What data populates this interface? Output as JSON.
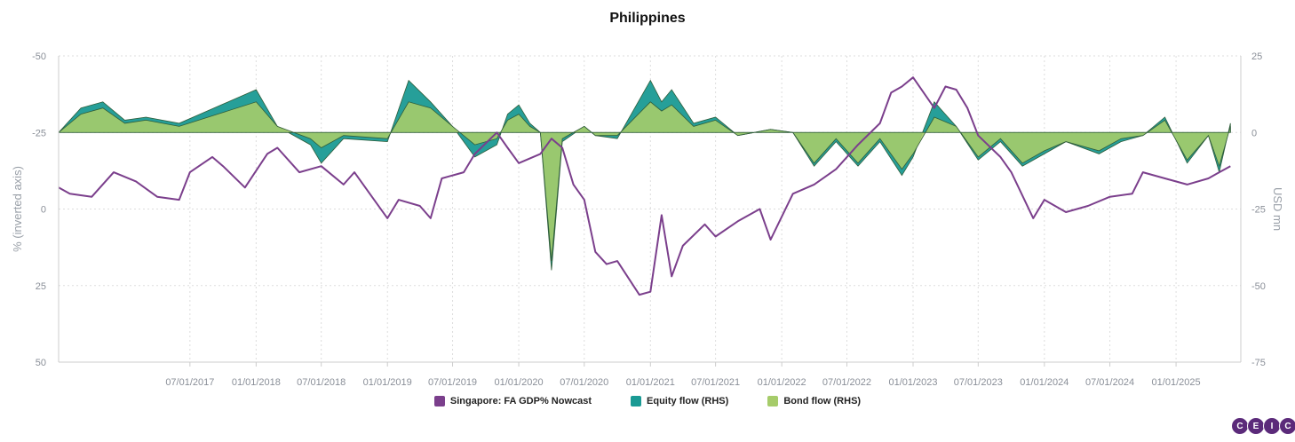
{
  "chart_data": {
    "type": "line",
    "title": "Philippines",
    "y_left": {
      "label": "% (inverted axis)",
      "ticks": [
        "-50",
        "-25",
        "0",
        "25",
        "50"
      ],
      "range": [
        -50,
        50
      ],
      "inverted": true
    },
    "y_right": {
      "label": "USD mn",
      "ticks": [
        "25",
        "0",
        "-25",
        "-50",
        "-75"
      ],
      "range": [
        -75,
        25
      ]
    },
    "x": {
      "start": "2016-07-01",
      "end": "2025-06-30",
      "ticks": [
        "07/01/2017",
        "01/01/2018",
        "07/01/2018",
        "01/01/2019",
        "07/01/2019",
        "01/01/2020",
        "07/01/2020",
        "01/01/2021",
        "07/01/2021",
        "01/01/2022",
        "07/01/2022",
        "01/01/2023",
        "07/01/2023",
        "01/01/2024",
        "07/01/2024",
        "01/01/2025"
      ]
    },
    "grid": true,
    "legend_position": "bottom",
    "series": [
      {
        "name": "Singapore: FA GDP% Nowcast",
        "axis": "left",
        "color": "#7b3f8c",
        "points": [
          [
            "2016-07",
            -7
          ],
          [
            "2016-08",
            -5
          ],
          [
            "2016-10",
            -4
          ],
          [
            "2016-12",
            -12
          ],
          [
            "2017-02",
            -9
          ],
          [
            "2017-04",
            -4
          ],
          [
            "2017-06",
            -3
          ],
          [
            "2017-07",
            -12
          ],
          [
            "2017-09",
            -17
          ],
          [
            "2017-10",
            -14
          ],
          [
            "2017-12",
            -7
          ],
          [
            "2018-02",
            -18
          ],
          [
            "2018-03",
            -20
          ],
          [
            "2018-05",
            -12
          ],
          [
            "2018-07",
            -14
          ],
          [
            "2018-09",
            -8
          ],
          [
            "2018-10",
            -12
          ],
          [
            "2018-12",
            -2
          ],
          [
            "2019-01",
            3
          ],
          [
            "2019-02",
            -3
          ],
          [
            "2019-04",
            -1
          ],
          [
            "2019-05",
            3
          ],
          [
            "2019-06",
            -10
          ],
          [
            "2019-08",
            -12
          ],
          [
            "2019-09",
            -18
          ],
          [
            "2019-11",
            -25
          ],
          [
            "2019-12",
            -20
          ],
          [
            "2020-01",
            -15
          ],
          [
            "2020-03",
            -18
          ],
          [
            "2020-04",
            -23
          ],
          [
            "2020-05",
            -20
          ],
          [
            "2020-06",
            -8
          ],
          [
            "2020-07",
            -3
          ],
          [
            "2020-08",
            14
          ],
          [
            "2020-09",
            18
          ],
          [
            "2020-10",
            17
          ],
          [
            "2020-12",
            28
          ],
          [
            "2021-01",
            27
          ],
          [
            "2021-02",
            2
          ],
          [
            "2021-03",
            22
          ],
          [
            "2021-04",
            12
          ],
          [
            "2021-06",
            5
          ],
          [
            "2021-07",
            9
          ],
          [
            "2021-09",
            4
          ],
          [
            "2021-11",
            0
          ],
          [
            "2021-12",
            10
          ],
          [
            "2022-02",
            -5
          ],
          [
            "2022-04",
            -8
          ],
          [
            "2022-06",
            -13
          ],
          [
            "2022-08",
            -21
          ],
          [
            "2022-10",
            -28
          ],
          [
            "2022-11",
            -38
          ],
          [
            "2022-12",
            -40
          ],
          [
            "2023-01",
            -43
          ],
          [
            "2023-03",
            -33
          ],
          [
            "2023-04",
            -40
          ],
          [
            "2023-05",
            -39
          ],
          [
            "2023-06",
            -33
          ],
          [
            "2023-07",
            -24
          ],
          [
            "2023-09",
            -17
          ],
          [
            "2023-10",
            -12
          ],
          [
            "2023-12",
            3
          ],
          [
            "2024-01",
            -3
          ],
          [
            "2024-03",
            1
          ],
          [
            "2024-05",
            -1
          ],
          [
            "2024-07",
            -4
          ],
          [
            "2024-09",
            -5
          ],
          [
            "2024-10",
            -12
          ],
          [
            "2024-12",
            -10
          ],
          [
            "2025-02",
            -8
          ],
          [
            "2025-04",
            -10
          ],
          [
            "2025-05",
            -12
          ],
          [
            "2025-06",
            -14
          ]
        ]
      },
      {
        "name": "Equity flow (RHS)",
        "axis": "right",
        "color": "#1a9a94",
        "points": [
          [
            "2016-07",
            0
          ],
          [
            "2016-09",
            8
          ],
          [
            "2016-11",
            10
          ],
          [
            "2017-01",
            4
          ],
          [
            "2017-03",
            5
          ],
          [
            "2017-06",
            3
          ],
          [
            "2018-01",
            14
          ],
          [
            "2018-03",
            2
          ],
          [
            "2018-06",
            -4
          ],
          [
            "2018-07",
            -10
          ],
          [
            "2018-09",
            -2
          ],
          [
            "2019-01",
            -3
          ],
          [
            "2019-03",
            17
          ],
          [
            "2019-05",
            10
          ],
          [
            "2019-07",
            2
          ],
          [
            "2019-09",
            -8
          ],
          [
            "2019-11",
            -4
          ],
          [
            "2019-12",
            6
          ],
          [
            "2020-01",
            9
          ],
          [
            "2020-02",
            3
          ],
          [
            "2020-03",
            0
          ],
          [
            "2020-04",
            -45
          ],
          [
            "2020-05",
            -3
          ],
          [
            "2020-07",
            2
          ],
          [
            "2020-08",
            -1
          ],
          [
            "2020-10",
            -2
          ],
          [
            "2021-01",
            17
          ],
          [
            "2021-02",
            10
          ],
          [
            "2021-03",
            14
          ],
          [
            "2021-05",
            3
          ],
          [
            "2021-07",
            5
          ],
          [
            "2021-09",
            -1
          ],
          [
            "2021-12",
            1
          ],
          [
            "2022-02",
            0
          ],
          [
            "2022-04",
            -11
          ],
          [
            "2022-06",
            -3
          ],
          [
            "2022-08",
            -11
          ],
          [
            "2022-10",
            -3
          ],
          [
            "2022-12",
            -14
          ],
          [
            "2023-01",
            -8
          ],
          [
            "2023-03",
            10
          ],
          [
            "2023-05",
            2
          ],
          [
            "2023-07",
            -9
          ],
          [
            "2023-09",
            -3
          ],
          [
            "2023-11",
            -11
          ],
          [
            "2024-01",
            -7
          ],
          [
            "2024-03",
            -3
          ],
          [
            "2024-06",
            -7
          ],
          [
            "2024-08",
            -3
          ],
          [
            "2024-10",
            -1
          ],
          [
            "2024-12",
            5
          ],
          [
            "2025-02",
            -10
          ],
          [
            "2025-04",
            -1
          ],
          [
            "2025-05",
            -13
          ],
          [
            "2025-06",
            3
          ]
        ]
      },
      {
        "name": "Bond flow (RHS)",
        "axis": "right",
        "color": "#a6cc6a",
        "points": [
          [
            "2016-07",
            0
          ],
          [
            "2016-09",
            6
          ],
          [
            "2016-11",
            8
          ],
          [
            "2017-01",
            3
          ],
          [
            "2017-03",
            4
          ],
          [
            "2017-06",
            2
          ],
          [
            "2018-01",
            10
          ],
          [
            "2018-03",
            2
          ],
          [
            "2018-06",
            -2
          ],
          [
            "2018-07",
            -5
          ],
          [
            "2018-09",
            -1
          ],
          [
            "2019-01",
            -2
          ],
          [
            "2019-03",
            10
          ],
          [
            "2019-05",
            8
          ],
          [
            "2019-07",
            2
          ],
          [
            "2019-09",
            -4
          ],
          [
            "2019-11",
            -2
          ],
          [
            "2019-12",
            4
          ],
          [
            "2020-01",
            6
          ],
          [
            "2020-02",
            2
          ],
          [
            "2020-03",
            0
          ],
          [
            "2020-04",
            -42
          ],
          [
            "2020-05",
            -2
          ],
          [
            "2020-07",
            2
          ],
          [
            "2020-08",
            -1
          ],
          [
            "2020-10",
            -1
          ],
          [
            "2021-01",
            10
          ],
          [
            "2021-02",
            7
          ],
          [
            "2021-03",
            9
          ],
          [
            "2021-05",
            2
          ],
          [
            "2021-07",
            4
          ],
          [
            "2021-09",
            -1
          ],
          [
            "2021-12",
            1
          ],
          [
            "2022-02",
            0
          ],
          [
            "2022-04",
            -10
          ],
          [
            "2022-06",
            -2
          ],
          [
            "2022-08",
            -10
          ],
          [
            "2022-10",
            -2
          ],
          [
            "2022-12",
            -12
          ],
          [
            "2023-01",
            -7
          ],
          [
            "2023-03",
            5
          ],
          [
            "2023-05",
            2
          ],
          [
            "2023-07",
            -8
          ],
          [
            "2023-09",
            -2
          ],
          [
            "2023-11",
            -10
          ],
          [
            "2024-01",
            -6
          ],
          [
            "2024-03",
            -3
          ],
          [
            "2024-06",
            -6
          ],
          [
            "2024-08",
            -2
          ],
          [
            "2024-10",
            -1
          ],
          [
            "2024-12",
            4
          ],
          [
            "2025-02",
            -9
          ],
          [
            "2025-04",
            -1
          ],
          [
            "2025-05",
            -11
          ],
          [
            "2025-06",
            2
          ]
        ]
      }
    ]
  },
  "logo": {
    "letters": [
      "C",
      "E",
      "I",
      "C"
    ],
    "color": "#5b2a7a"
  }
}
